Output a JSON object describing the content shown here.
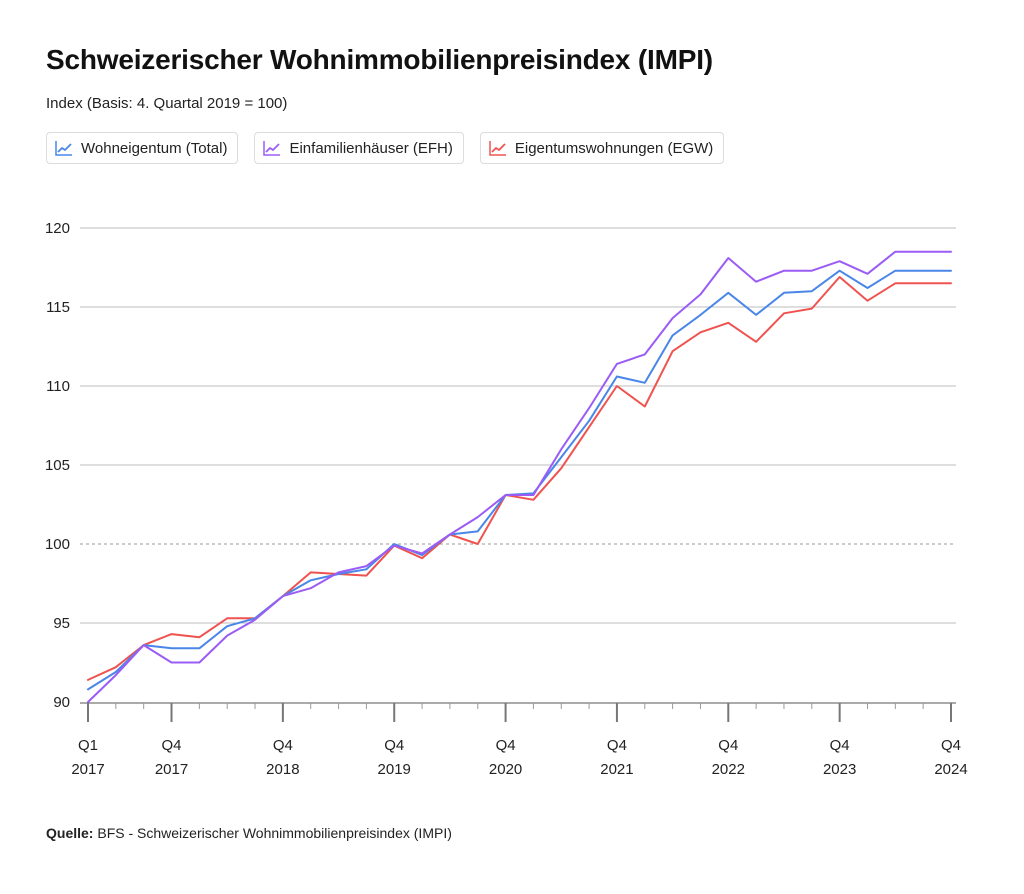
{
  "title": "Schweizerischer Wohnimmobilienpreisindex (IMPI)",
  "subtitle": "Index (Basis: 4. Quartal 2019 = 100)",
  "source_label": "Quelle:",
  "source_text": " BFS - Schweizerischer Wohnimmobilienpreisindex (IMPI)",
  "chart_data": {
    "type": "line",
    "title": "Schweizerischer Wohnimmobilienpreisindex (IMPI)",
    "subtitle": "Index (Basis: 4. Quartal 2019 = 100)",
    "xlabel": "",
    "ylabel": "",
    "ylim": [
      90,
      120
    ],
    "yticks": [
      90,
      95,
      100,
      105,
      110,
      115,
      120
    ],
    "reference_line": 100,
    "grid": true,
    "legend_position": "top-left",
    "x": [
      "Q1 2017",
      "Q2 2017",
      "Q3 2017",
      "Q4 2017",
      "Q1 2018",
      "Q2 2018",
      "Q3 2018",
      "Q4 2018",
      "Q1 2019",
      "Q2 2019",
      "Q3 2019",
      "Q4 2019",
      "Q1 2020",
      "Q2 2020",
      "Q3 2020",
      "Q4 2020",
      "Q1 2021",
      "Q2 2021",
      "Q3 2021",
      "Q4 2021",
      "Q1 2022",
      "Q2 2022",
      "Q3 2022",
      "Q4 2022",
      "Q1 2023",
      "Q2 2023",
      "Q3 2023",
      "Q4 2023",
      "Q1 2024",
      "Q2 2024",
      "Q3 2024",
      "Q4 2024"
    ],
    "xtick_labels": [
      {
        "index": 0,
        "line1": "Q1",
        "line2": "2017"
      },
      {
        "index": 3,
        "line1": "Q4",
        "line2": "2017"
      },
      {
        "index": 7,
        "line1": "Q4",
        "line2": "2018"
      },
      {
        "index": 11,
        "line1": "Q4",
        "line2": "2019"
      },
      {
        "index": 15,
        "line1": "Q4",
        "line2": "2020"
      },
      {
        "index": 19,
        "line1": "Q4",
        "line2": "2021"
      },
      {
        "index": 23,
        "line1": "Q4",
        "line2": "2022"
      },
      {
        "index": 27,
        "line1": "Q4",
        "line2": "2023"
      },
      {
        "index": 31,
        "line1": "Q4",
        "line2": "2024"
      }
    ],
    "series": [
      {
        "name": "Wohneigentum (Total)",
        "color": "#4a86e8",
        "values": [
          90.8,
          91.9,
          93.6,
          93.4,
          93.4,
          94.8,
          95.3,
          96.7,
          97.7,
          98.1,
          98.4,
          100.0,
          99.3,
          100.6,
          100.8,
          103.1,
          103.2,
          105.5,
          107.8,
          110.6,
          110.2,
          113.2,
          114.5,
          115.9,
          114.5,
          115.9,
          116.0,
          117.3,
          116.2,
          117.3,
          117.3,
          117.3
        ]
      },
      {
        "name": "Einfamilienhäuser (EFH)",
        "color": "#9b5cf6",
        "values": [
          90.0,
          91.7,
          93.6,
          92.5,
          92.5,
          94.2,
          95.2,
          96.7,
          97.2,
          98.2,
          98.6,
          99.9,
          99.4,
          100.6,
          101.7,
          103.1,
          103.1,
          106.0,
          108.6,
          111.4,
          112.0,
          114.3,
          115.8,
          118.1,
          116.6,
          117.3,
          117.3,
          117.9,
          117.1,
          118.5,
          118.5,
          118.5
        ]
      },
      {
        "name": "Eigentumswohnungen (EGW)",
        "color": "#ef5350",
        "values": [
          91.4,
          92.2,
          93.6,
          94.3,
          94.1,
          95.3,
          95.3,
          96.7,
          98.2,
          98.1,
          98.0,
          99.9,
          99.1,
          100.6,
          100.0,
          103.1,
          102.8,
          104.8,
          107.4,
          110.0,
          108.7,
          112.2,
          113.4,
          114.0,
          112.8,
          114.6,
          114.9,
          116.9,
          115.4,
          116.5,
          116.5,
          116.5
        ]
      }
    ]
  }
}
